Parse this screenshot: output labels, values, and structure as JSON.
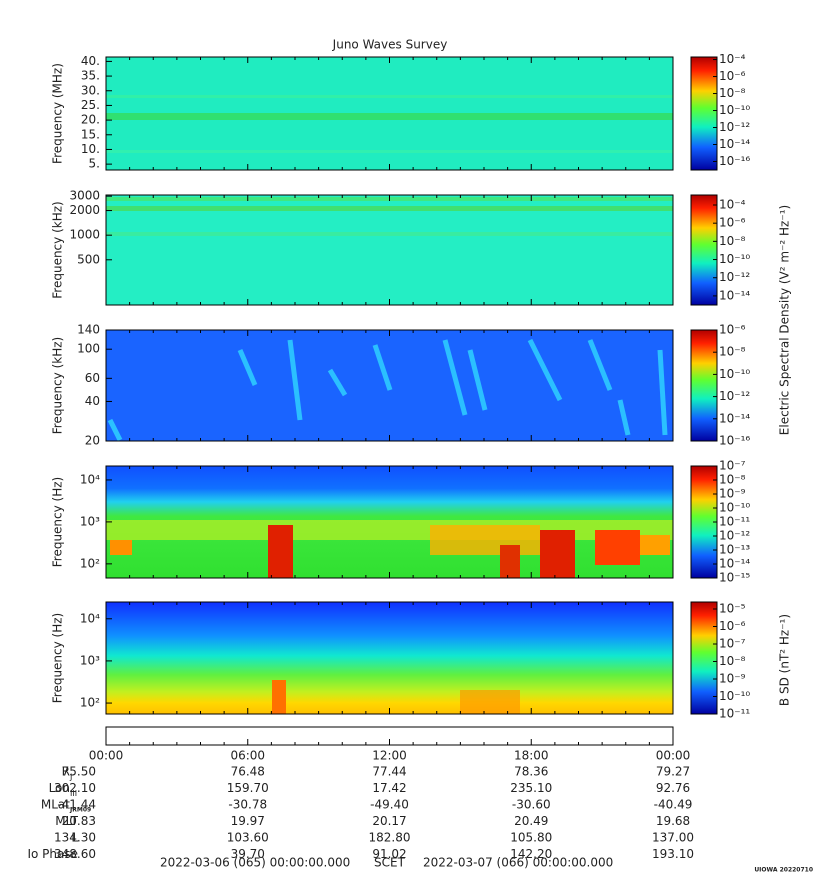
{
  "title": "Juno Waves Survey",
  "panels": [
    {
      "ylabel": "Frequency (MHz)",
      "log": false,
      "ylim": [
        3,
        41.5
      ],
      "yticks": [
        {
          "value": 5,
          "label": "5."
        },
        {
          "value": 10,
          "label": "10."
        },
        {
          "value": 15,
          "label": "15."
        },
        {
          "value": 20,
          "label": "20."
        },
        {
          "value": 25,
          "label": "25."
        },
        {
          "value": 30,
          "label": "30."
        },
        {
          "value": 35,
          "label": "35."
        },
        {
          "value": 40,
          "label": "40."
        }
      ],
      "clim": [
        -17,
        -3.7
      ],
      "cticks": [
        {
          "value": -4,
          "label": "10⁻⁴"
        },
        {
          "value": -6,
          "label": "10⁻⁶"
        },
        {
          "value": -8,
          "label": "10⁻⁸"
        },
        {
          "value": -10,
          "label": "10⁻¹⁰"
        },
        {
          "value": -12,
          "label": "10⁻¹²"
        },
        {
          "value": -14,
          "label": "10⁻¹⁴"
        },
        {
          "value": -16,
          "label": "10⁻¹⁶"
        }
      ]
    },
    {
      "ylabel": "Frequency (kHz)",
      "log": true,
      "ylim": [
        140,
        3100
      ],
      "yticks": [
        500,
        1000,
        2000,
        3000
      ],
      "clim": [
        -15,
        -2.9
      ],
      "cticks": [
        {
          "value": -4,
          "label": "10⁻⁴"
        },
        {
          "value": -6,
          "label": "10⁻⁶"
        },
        {
          "value": -8,
          "label": "10⁻⁸"
        },
        {
          "value": -10,
          "label": "10⁻¹⁰"
        },
        {
          "value": -12,
          "label": "10⁻¹²"
        },
        {
          "value": -14,
          "label": "10⁻¹⁴"
        }
      ]
    },
    {
      "ylabel": "Frequency (kHz)",
      "log": true,
      "ylim": [
        20,
        140
      ],
      "yticks": [
        20,
        40,
        60,
        100,
        140
      ],
      "clim": [
        -16,
        -6
      ],
      "cticks": [
        {
          "value": -6,
          "label": "10⁻⁶"
        },
        {
          "value": -8,
          "label": "10⁻⁸"
        },
        {
          "value": -10,
          "label": "10⁻¹⁰"
        },
        {
          "value": -12,
          "label": "10⁻¹²"
        },
        {
          "value": -14,
          "label": "10⁻¹⁴"
        },
        {
          "value": -16,
          "label": "10⁻¹⁶"
        }
      ]
    },
    {
      "ylabel": "Frequency (Hz)",
      "log": true,
      "ylim": [
        46,
        21500
      ],
      "yticks": [
        {
          "value": 100,
          "label": "10²"
        },
        {
          "value": 1000,
          "label": "10³"
        },
        {
          "value": 10000,
          "label": "10⁴"
        }
      ],
      "clim": [
        -15,
        -7
      ],
      "cticks": [
        {
          "value": -7,
          "label": "10⁻⁷"
        },
        {
          "value": -8,
          "label": "10⁻⁸"
        },
        {
          "value": -9,
          "label": "10⁻⁹"
        },
        {
          "value": -10,
          "label": "10⁻¹⁰"
        },
        {
          "value": -11,
          "label": "10⁻¹¹"
        },
        {
          "value": -12,
          "label": "10⁻¹²"
        },
        {
          "value": -13,
          "label": "10⁻¹³"
        },
        {
          "value": -14,
          "label": "10⁻¹⁴"
        },
        {
          "value": -15,
          "label": "10⁻¹⁵"
        }
      ]
    },
    {
      "ylabel": "Frequency (Hz)",
      "log": true,
      "ylim": [
        55,
        25000
      ],
      "yticks": [
        {
          "value": 100,
          "label": "10²"
        },
        {
          "value": 1000,
          "label": "10³"
        },
        {
          "value": 10000,
          "label": "10⁴"
        }
      ],
      "clim": [
        -11,
        -4.6
      ],
      "cticks": [
        {
          "value": -5,
          "label": "10⁻⁵"
        },
        {
          "value": -6,
          "label": "10⁻⁶"
        },
        {
          "value": -7,
          "label": "10⁻⁷"
        },
        {
          "value": -8,
          "label": "10⁻⁸"
        },
        {
          "value": -9,
          "label": "10⁻⁹"
        },
        {
          "value": -10,
          "label": "10⁻¹⁰"
        },
        {
          "value": -11,
          "label": "10⁻¹¹"
        }
      ]
    }
  ],
  "colorbar_labels": [
    "Electric Spectral Density (V² m⁻² Hz⁻¹)",
    "B SD (nT² Hz⁻¹)"
  ],
  "time_ticks": [
    "00:00",
    "06:00",
    "12:00",
    "18:00",
    "00:00"
  ],
  "ephemeris": [
    {
      "label": "R",
      "sub": "J",
      "values": [
        "75.50",
        "76.48",
        "77.44",
        "78.36",
        "79.27"
      ]
    },
    {
      "label": "Lon",
      "sub": "III",
      "values": [
        "302.10",
        "159.70",
        "17.42",
        "235.10",
        "92.76"
      ]
    },
    {
      "label": "MLat",
      "sub": "JRM09",
      "values": [
        "-41.44",
        "-30.78",
        "-49.40",
        "-30.60",
        "-40.49"
      ]
    },
    {
      "label": "MLT",
      "values": [
        "20.83",
        "19.97",
        "20.17",
        "20.49",
        "19.68"
      ]
    },
    {
      "label": "L",
      "values": [
        "134.30",
        "103.60",
        "182.80",
        "105.80",
        "137.00"
      ]
    },
    {
      "label": "Io Phase",
      "values": [
        "348.60",
        "39.70",
        "91.02",
        "142.20",
        "193.10"
      ]
    }
  ],
  "footer": {
    "start": "2022-03-06 (065) 00:00:00.000",
    "label": "SCET",
    "end": "2022-03-07 (066) 00:00:00.000"
  },
  "stamp": "UIOWA 20220710"
}
